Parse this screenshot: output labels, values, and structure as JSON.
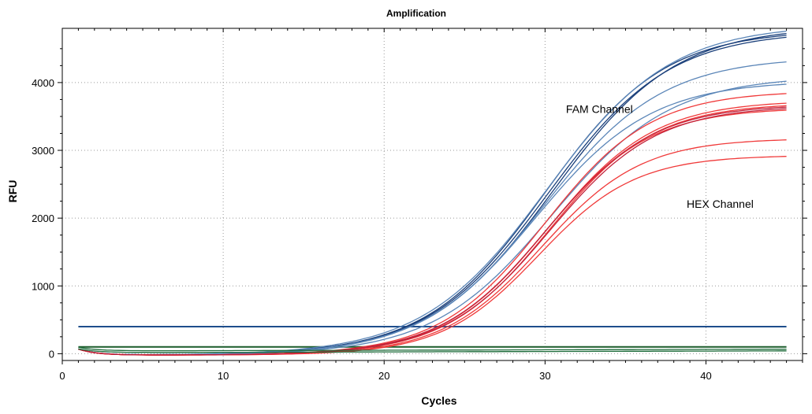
{
  "chart_data": {
    "type": "line",
    "title": "Amplification",
    "xlabel": "Cycles",
    "ylabel": "RFU",
    "xlim": [
      0,
      46
    ],
    "ylim": [
      -100,
      4800
    ],
    "xticks": [
      0,
      10,
      20,
      30,
      40
    ],
    "yticks": [
      0,
      1000,
      2000,
      3000,
      4000
    ],
    "grid": true,
    "annotations": [
      {
        "text": "FAM Channel",
        "x": 31.3,
        "y": 3550
      },
      {
        "text": "HEX Channel",
        "x": 38.8,
        "y": 2150
      }
    ],
    "thresholds": [
      {
        "value": 400,
        "color": "#1f4e8c"
      },
      {
        "value": 100,
        "color": "#1a5c2a"
      }
    ],
    "cycles_range": [
      1,
      45
    ],
    "colors": {
      "fam_a": "#1a3f7a",
      "fam_b": "#5b86b8",
      "hex": "#f03a3a",
      "hex_dark": "#c2233b",
      "baseline": "#1d6b3a",
      "grid": "#9a9a9a",
      "axis": "#000000"
    },
    "series": [
      {
        "group": "FAM",
        "color": "#1a3f7a",
        "plateau": 4800,
        "midpoint": 30.0,
        "slope": 3.7
      },
      {
        "group": "FAM",
        "color": "#1a3f7a",
        "plateau": 4850,
        "midpoint": 30.5,
        "slope": 3.8
      },
      {
        "group": "FAM",
        "color": "#1a3f7a",
        "plateau": 4780,
        "midpoint": 30.2,
        "slope": 3.75
      },
      {
        "group": "FAM",
        "color": "#5b86b8",
        "plateau": 4880,
        "midpoint": 30.1,
        "slope": 3.85
      },
      {
        "group": "FAM",
        "color": "#5b86b8",
        "plateau": 4400,
        "midpoint": 29.9,
        "slope": 3.7
      },
      {
        "group": "FAM",
        "color": "#5b86b8",
        "plateau": 4050,
        "midpoint": 29.4,
        "slope": 3.6
      },
      {
        "group": "FAM",
        "color": "#5b86b8",
        "plateau": 4120,
        "midpoint": 30.4,
        "slope": 3.7
      },
      {
        "group": "HEX",
        "color": "#f03a3a",
        "plateau": 3900,
        "midpoint": 30.0,
        "slope": 3.3
      },
      {
        "group": "HEX",
        "color": "#f03a3a",
        "plateau": 3760,
        "midpoint": 30.2,
        "slope": 3.3
      },
      {
        "group": "HEX",
        "color": "#f03a3a",
        "plateau": 3720,
        "midpoint": 30.3,
        "slope": 3.25
      },
      {
        "group": "HEX",
        "color": "#f03a3a",
        "plateau": 3650,
        "midpoint": 30.0,
        "slope": 3.25
      },
      {
        "group": "HEX",
        "color": "#f03a3a",
        "plateau": 3200,
        "midpoint": 29.8,
        "slope": 3.1
      },
      {
        "group": "HEX",
        "color": "#f03a3a",
        "plateau": 2950,
        "midpoint": 29.6,
        "slope": 3.0
      },
      {
        "group": "HEX",
        "color": "#c2233b",
        "plateau": 3700,
        "midpoint": 30.1,
        "slope": 3.3
      },
      {
        "group": "HEX",
        "color": "#c2233b",
        "plateau": 3680,
        "midpoint": 30.3,
        "slope": 3.3
      },
      {
        "group": "NTC",
        "color": "#1d6b3a",
        "flat": 40
      },
      {
        "group": "NTC",
        "color": "#1d6b3a",
        "flat": 15
      }
    ]
  }
}
